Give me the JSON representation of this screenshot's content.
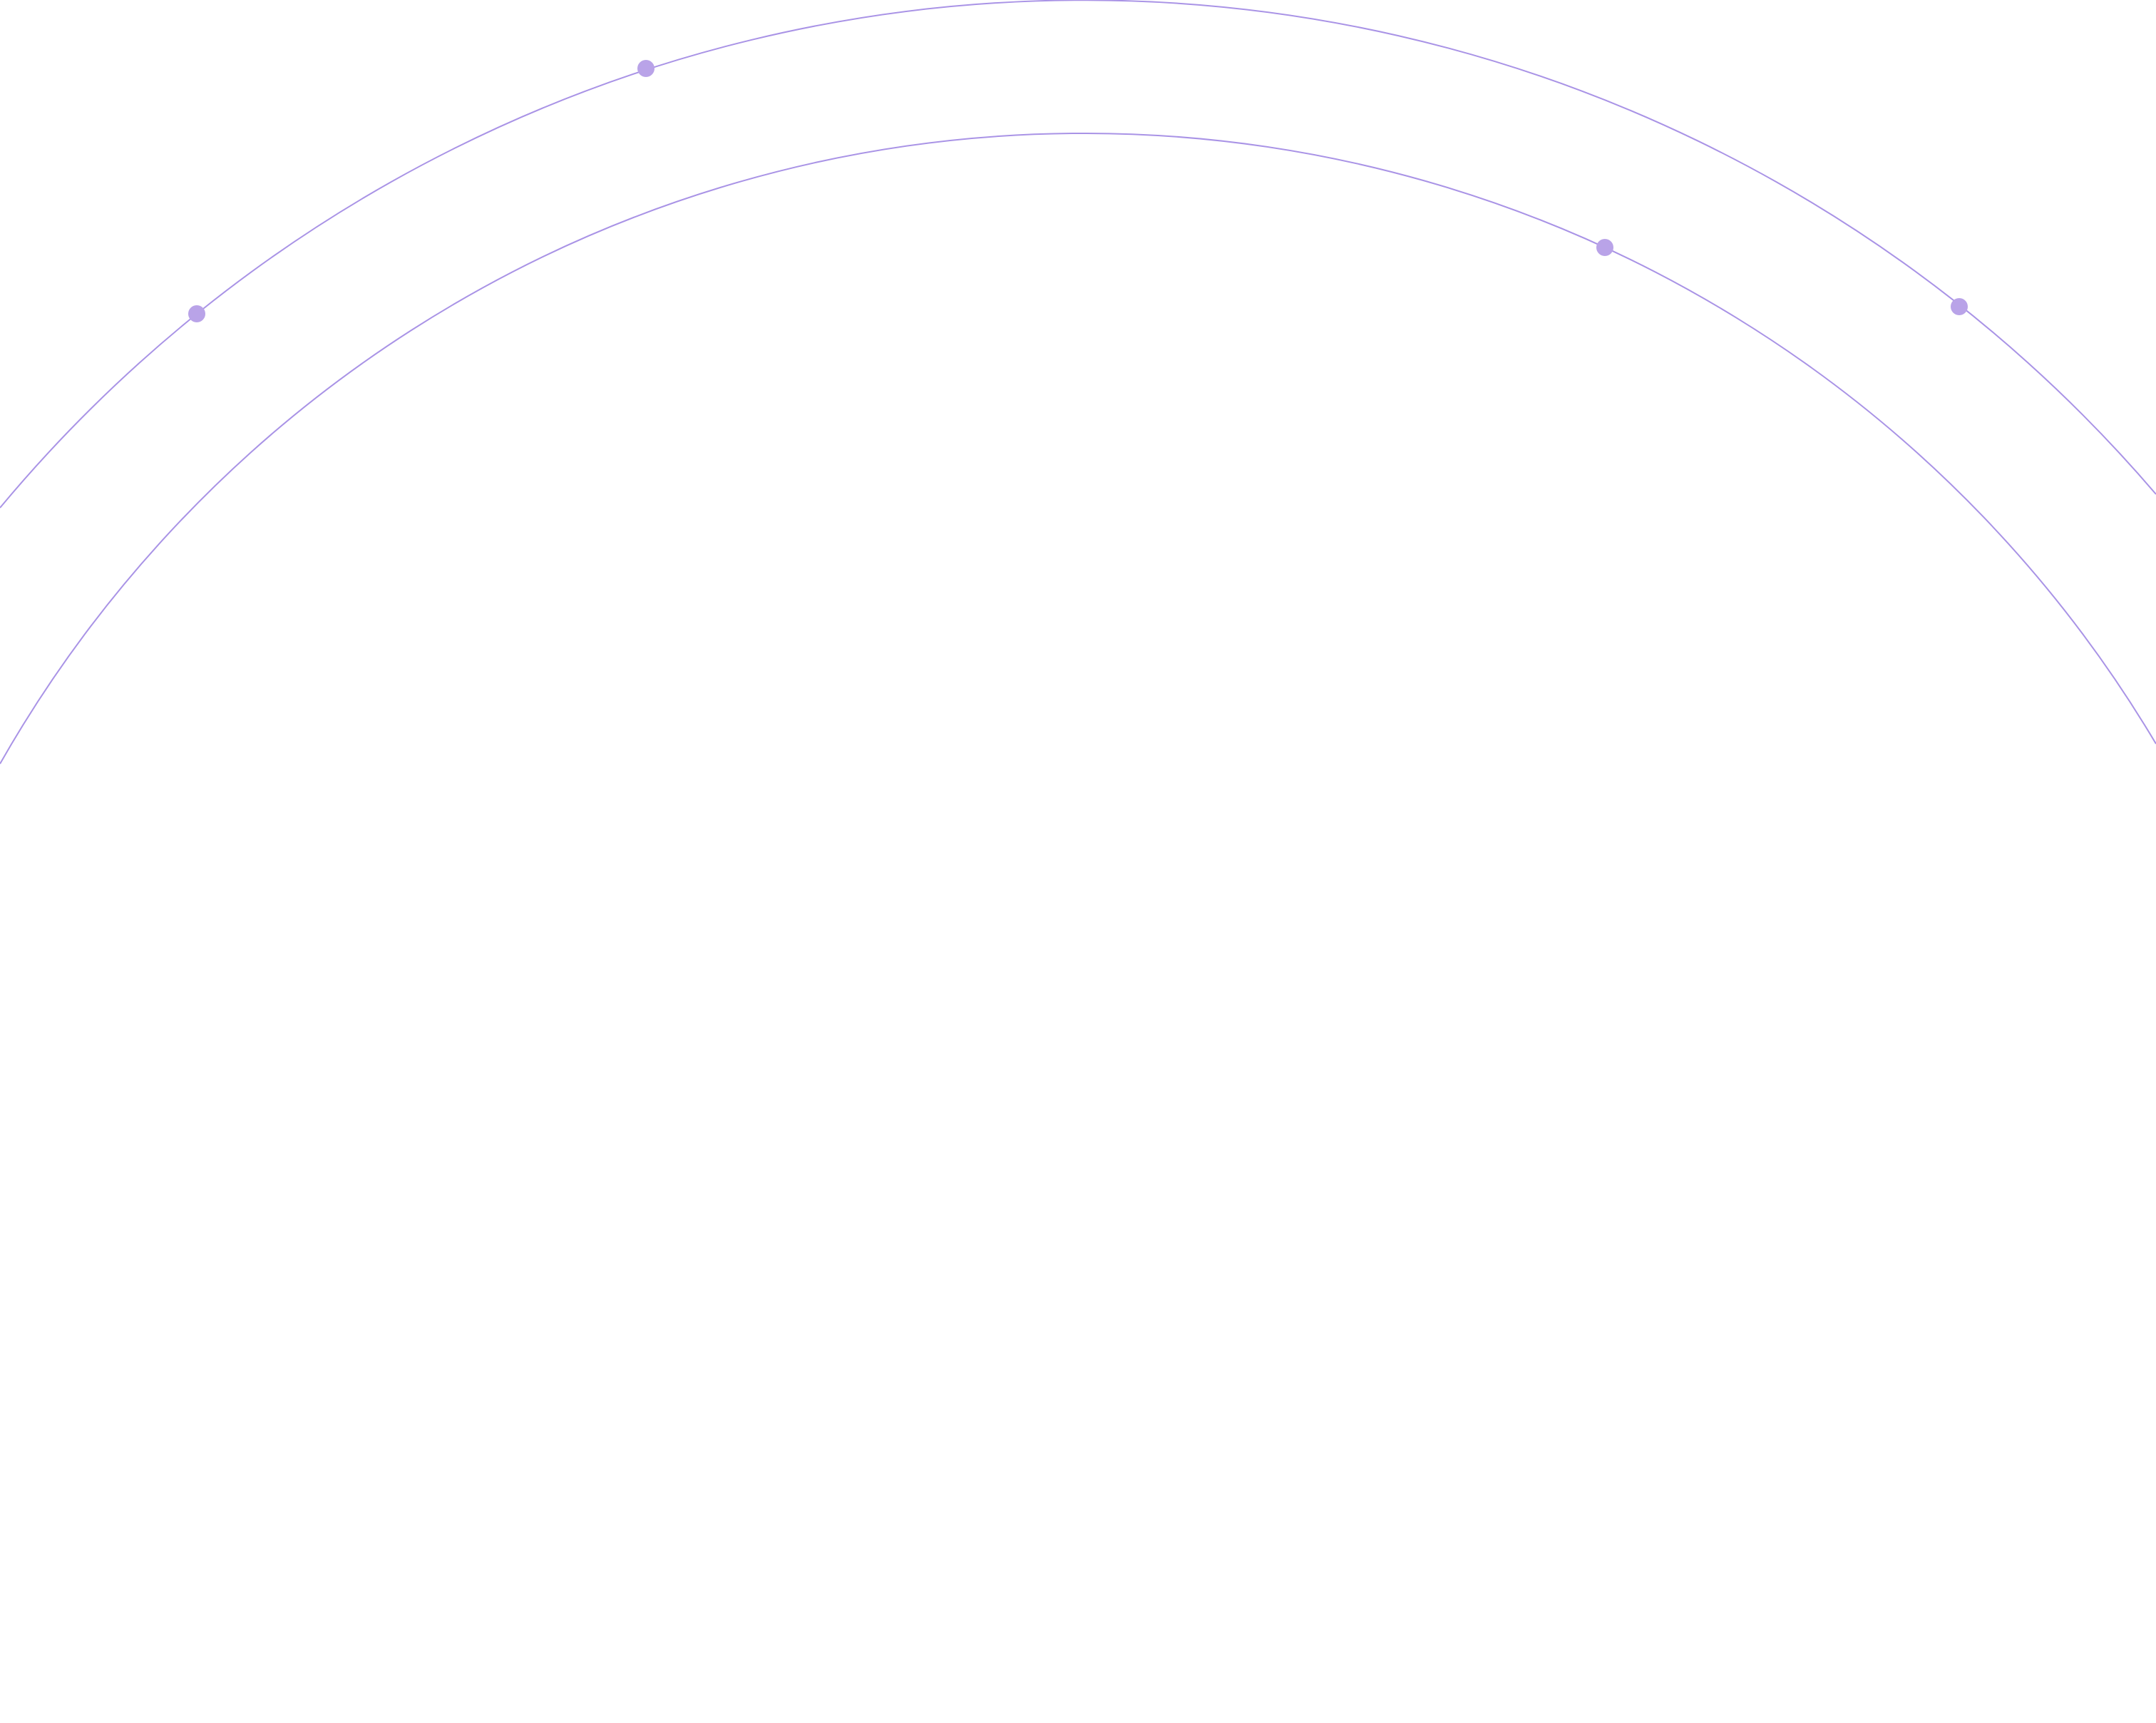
{
  "colors": {
    "arc_stroke": "#a993e6",
    "dot_fill": "#b9a3e8"
  }
}
